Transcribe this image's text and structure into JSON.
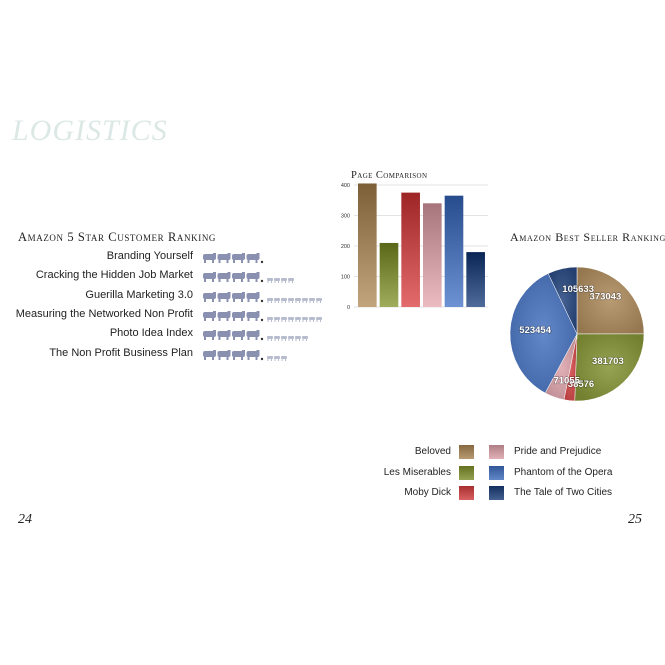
{
  "page": {
    "title": "LOGISTICS",
    "page_left": "24",
    "page_right": "25"
  },
  "colors": {
    "beloved": "#a0825a",
    "les_miserables": "#7d8a3a",
    "moby_dick": "#c04848",
    "pride_prejudice": "#c8989e",
    "phantom": "#4a6fb0",
    "tale_two_cities": "#2c4878",
    "rating_icon": "#8a90b0"
  },
  "ranking": {
    "heading": "Amazon 5 Star Customer Ranking",
    "icon": "elephant-icon",
    "rows": [
      {
        "title": "Branding Yourself",
        "filled": 4,
        "faded": 0
      },
      {
        "title": "Cracking the Hidden Job Market",
        "filled": 4,
        "faded": 4
      },
      {
        "title": "Guerilla Marketing 3.0",
        "filled": 4,
        "faded": 8
      },
      {
        "title": "Measuring the Networked Non Profit",
        "filled": 4,
        "faded": 8
      },
      {
        "title": "Photo Idea Index",
        "filled": 4,
        "faded": 6
      },
      {
        "title": "The Non Profit Business Plan",
        "filled": 4,
        "faded": 3
      }
    ]
  },
  "chart_data": [
    {
      "type": "bar",
      "title": "Page Comparison",
      "categories": [
        "Beloved",
        "Les Miserables",
        "Moby Dick",
        "Pride and Prejudice",
        "Phantom of the Opera",
        "The Tale of Two Cities"
      ],
      "values": [
        405,
        210,
        375,
        340,
        365,
        180
      ],
      "ylim": [
        0,
        400
      ],
      "yticks": [
        0,
        100,
        200,
        300,
        400
      ],
      "grid": true
    },
    {
      "type": "pie",
      "title": "Amazon Best Seller Ranking",
      "categories": [
        "Beloved",
        "Les Miserables",
        "Moby Dick",
        "Pride and Prejudice",
        "Phantom of the Opera",
        "The Tale of Two Cities"
      ],
      "values": [
        373043,
        381703,
        38576,
        71055,
        523454,
        105633
      ],
      "labels": [
        "373043",
        "381703",
        "38576",
        "71055",
        "523454",
        "105633"
      ]
    }
  ],
  "legend": {
    "items": [
      {
        "label": "Beloved",
        "key": "beloved"
      },
      {
        "label": "Les Miserables",
        "key": "les_miserables"
      },
      {
        "label": "Moby Dick",
        "key": "moby_dick"
      },
      {
        "label": "Pride and Prejudice",
        "key": "pride_prejudice"
      },
      {
        "label": "Phantom of the Opera",
        "key": "phantom"
      },
      {
        "label": "The Tale of Two Cities",
        "key": "tale_two_cities"
      }
    ]
  }
}
